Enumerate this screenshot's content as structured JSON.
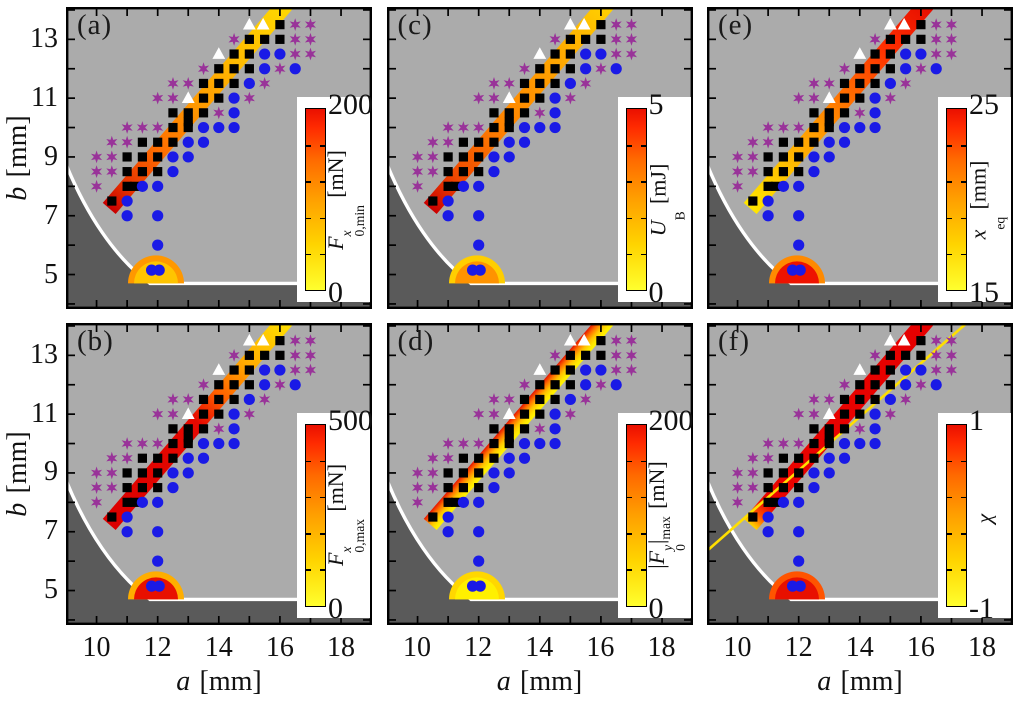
{
  "chart_data": {
    "type": "scatter",
    "description": "Six-panel stability diagram: marker classes repeated in every panel over a yellow-to-red quantity band; each panel has its own colorbar.",
    "xlabel_var": "a",
    "xlabel_unit": "[mm]",
    "ylabel_var": "b",
    "ylabel_unit": "[mm]",
    "x_ticks": [
      10,
      12,
      14,
      16,
      18
    ],
    "y_ticks": [
      13,
      11,
      9,
      7,
      5
    ],
    "x_range": [
      9,
      19
    ],
    "y_range": [
      3.83,
      14.1
    ],
    "grid": false,
    "panels": [
      {
        "letter": "(a)",
        "row": 0,
        "col": 0,
        "colorbar": {
          "max": "200",
          "min": "0",
          "label": {
            "pre": "",
            "main": "F",
            "sup": "x",
            "sub": "0,min",
            "post": "",
            "postsub": "",
            "unit": "[mN]"
          }
        },
        "band": {
          "dir": "along",
          "stops": [
            [
              0,
              "#c80000"
            ],
            [
              0.1,
              "#e63000"
            ],
            [
              0.28,
              "#ff6d00"
            ],
            [
              0.5,
              "#ff9900"
            ],
            [
              0.72,
              "#ffbb00"
            ],
            [
              1,
              "#ffd900"
            ]
          ]
        },
        "blob": {
          "core": "#ffc400",
          "rim": "#ff9800"
        },
        "line": false
      },
      {
        "letter": "(b)",
        "row": 1,
        "col": 0,
        "colorbar": {
          "max": "500",
          "min": "0",
          "label": {
            "pre": "",
            "main": "F",
            "sup": "x",
            "sub": "0,max",
            "post": "",
            "postsub": "",
            "unit": "[mN]"
          }
        },
        "band": {
          "dir": "along",
          "stops": [
            [
              0,
              "#dc0000"
            ],
            [
              0.5,
              "#e60800"
            ],
            [
              0.63,
              "#ff6000"
            ],
            [
              0.78,
              "#ffaa00"
            ],
            [
              1,
              "#ffe000"
            ]
          ]
        },
        "blob": {
          "core": "#e81000",
          "rim": "#ffae00"
        },
        "line": false
      },
      {
        "letter": "(c)",
        "row": 0,
        "col": 1,
        "colorbar": {
          "max": "5",
          "min": "0",
          "label": {
            "pre": "",
            "main": "U",
            "sup": "",
            "sub": "B",
            "post": "",
            "postsub": "",
            "unit": "[mJ]"
          }
        },
        "band": {
          "dir": "along",
          "stops": [
            [
              0,
              "#cc0000"
            ],
            [
              0.15,
              "#f04800"
            ],
            [
              0.4,
              "#ff8200"
            ],
            [
              0.65,
              "#ff9d00"
            ],
            [
              0.85,
              "#ffb800"
            ],
            [
              1,
              "#ffd200"
            ]
          ]
        },
        "blob": {
          "core": "#ff9300",
          "rim": "#ffce00"
        },
        "line": false
      },
      {
        "letter": "(d)",
        "row": 1,
        "col": 1,
        "colorbar": {
          "max": "200",
          "min": "0",
          "label": {
            "pre": "|",
            "main": "F",
            "sup": "y",
            "sub": "0",
            "post": "|",
            "postsub": "max",
            "unit": "[mN]"
          }
        },
        "band": {
          "dir": "across",
          "stops": [
            [
              0,
              "#e61400"
            ],
            [
              0.28,
              "#ff7300"
            ],
            [
              0.55,
              "#ffc000"
            ],
            [
              0.8,
              "#ffe600"
            ],
            [
              1,
              "#fff400"
            ]
          ]
        },
        "blob": {
          "core": "#fff000",
          "rim": "#ffd700"
        },
        "line": false
      },
      {
        "letter": "(e)",
        "row": 0,
        "col": 2,
        "colorbar": {
          "max": "25",
          "min": "15",
          "label": {
            "pre": "",
            "main": "x",
            "sup": "",
            "sub": "eq",
            "post": "",
            "postsub": "",
            "unit": "[mm]"
          }
        },
        "band": {
          "dir": "along",
          "stops": [
            [
              0,
              "#ffe600"
            ],
            [
              0.18,
              "#ffc400"
            ],
            [
              0.38,
              "#ff9900"
            ],
            [
              0.58,
              "#ff6600"
            ],
            [
              0.78,
              "#ff2e00"
            ],
            [
              1,
              "#e60e00"
            ]
          ]
        },
        "blob": {
          "core": "#ee1200",
          "rim": "#ff8a00"
        },
        "line": false
      },
      {
        "letter": "(f)",
        "row": 1,
        "col": 2,
        "colorbar": {
          "max": "1",
          "min": "-1",
          "label": {
            "pre": "",
            "main": "χ",
            "sup": "",
            "sub": "",
            "post": "",
            "postsub": "",
            "unit": ""
          }
        },
        "band": {
          "dir": "along",
          "stops": [
            [
              0,
              "#ffd700"
            ],
            [
              0.05,
              "#ff4d00"
            ],
            [
              0.1,
              "#ea0400"
            ],
            [
              1,
              "#e60000"
            ]
          ]
        },
        "blob": {
          "core": "#e81000",
          "rim": "#ff5400"
        },
        "line": true
      }
    ],
    "series": [
      {
        "name": "black-squares",
        "marker": "square",
        "color": "#000000",
        "points": [
          [
            16,
            13.5
          ],
          [
            15,
            13
          ],
          [
            15.5,
            13
          ],
          [
            16,
            13
          ],
          [
            14.5,
            12.5
          ],
          [
            15,
            12.5
          ],
          [
            14,
            12
          ],
          [
            14.5,
            12
          ],
          [
            15,
            12
          ],
          [
            13.5,
            11.5
          ],
          [
            14,
            11.5
          ],
          [
            14.5,
            11.5
          ],
          [
            13.5,
            11
          ],
          [
            14,
            11
          ],
          [
            12.5,
            10.5
          ],
          [
            13,
            10.5
          ],
          [
            13.5,
            10.5
          ],
          [
            13,
            10.2
          ],
          [
            12.5,
            10
          ],
          [
            13,
            10
          ],
          [
            11.5,
            9.5
          ],
          [
            12,
            9.5
          ],
          [
            12.5,
            9.5
          ],
          [
            11,
            9
          ],
          [
            11.5,
            9
          ],
          [
            12,
            9
          ],
          [
            11,
            8.5
          ],
          [
            11.5,
            8.5
          ],
          [
            12,
            8.5
          ],
          [
            11,
            8
          ],
          [
            11.25,
            8
          ],
          [
            10.5,
            7.5
          ]
        ]
      },
      {
        "name": "blue-circles",
        "marker": "circle",
        "color": "#1a1ae6",
        "points": [
          [
            15.5,
            12.5
          ],
          [
            16,
            12.5
          ],
          [
            15.5,
            12
          ],
          [
            16.5,
            12
          ],
          [
            15,
            11.5
          ],
          [
            14.5,
            11
          ],
          [
            14.5,
            10.5
          ],
          [
            13.5,
            10
          ],
          [
            14,
            10
          ],
          [
            14.5,
            10
          ],
          [
            13,
            9.5
          ],
          [
            13.5,
            9.5
          ],
          [
            12.5,
            9
          ],
          [
            13,
            9
          ],
          [
            12.5,
            8.5
          ],
          [
            11.5,
            8
          ],
          [
            12,
            8
          ],
          [
            11,
            7.5
          ],
          [
            11,
            7
          ],
          [
            12,
            7
          ],
          [
            12,
            6
          ],
          [
            11.8,
            5.15
          ],
          [
            12.05,
            5.15
          ]
        ]
      },
      {
        "name": "purple-stars",
        "marker": "star",
        "color": "#993399",
        "points": [
          [
            16.5,
            13.5
          ],
          [
            17,
            13.5
          ],
          [
            14.5,
            13
          ],
          [
            16.5,
            13
          ],
          [
            17,
            13
          ],
          [
            16.5,
            12.5
          ],
          [
            17,
            12.5
          ],
          [
            13.5,
            12
          ],
          [
            16,
            12
          ],
          [
            12.5,
            11.5
          ],
          [
            13,
            11.5
          ],
          [
            15.5,
            11.5
          ],
          [
            12,
            11
          ],
          [
            12.5,
            11
          ],
          [
            15,
            11
          ],
          [
            14,
            10.5
          ],
          [
            11,
            10
          ],
          [
            11.5,
            10
          ],
          [
            12,
            10
          ],
          [
            10.5,
            9.5
          ],
          [
            11,
            9.5
          ],
          [
            10,
            9
          ],
          [
            10.5,
            9
          ],
          [
            10,
            8.5
          ],
          [
            10.5,
            8.5
          ],
          [
            10,
            8
          ]
        ]
      },
      {
        "name": "white-triangles",
        "marker": "triangle",
        "color": "#ffffff",
        "points": [
          [
            15,
            13.5
          ],
          [
            15.45,
            13.5
          ],
          [
            14,
            12.5
          ],
          [
            13,
            11
          ]
        ]
      }
    ]
  },
  "colors": {
    "plot_bg": "#ababab",
    "outside_bg": "#ffffff",
    "excluded_region": "#5a5a5a",
    "boundary": "#ffffff",
    "panel_border": "#000000",
    "tick": "#000000",
    "text": "#111111",
    "line_f": "#ffdf00",
    "colorbar_stops": [
      [
        0,
        "#ffff2e"
      ],
      [
        0.25,
        "#ffd400"
      ],
      [
        0.5,
        "#ffa000"
      ],
      [
        0.72,
        "#ff6a00"
      ],
      [
        0.9,
        "#ff2a00"
      ],
      [
        1,
        "#ea1000"
      ]
    ]
  }
}
